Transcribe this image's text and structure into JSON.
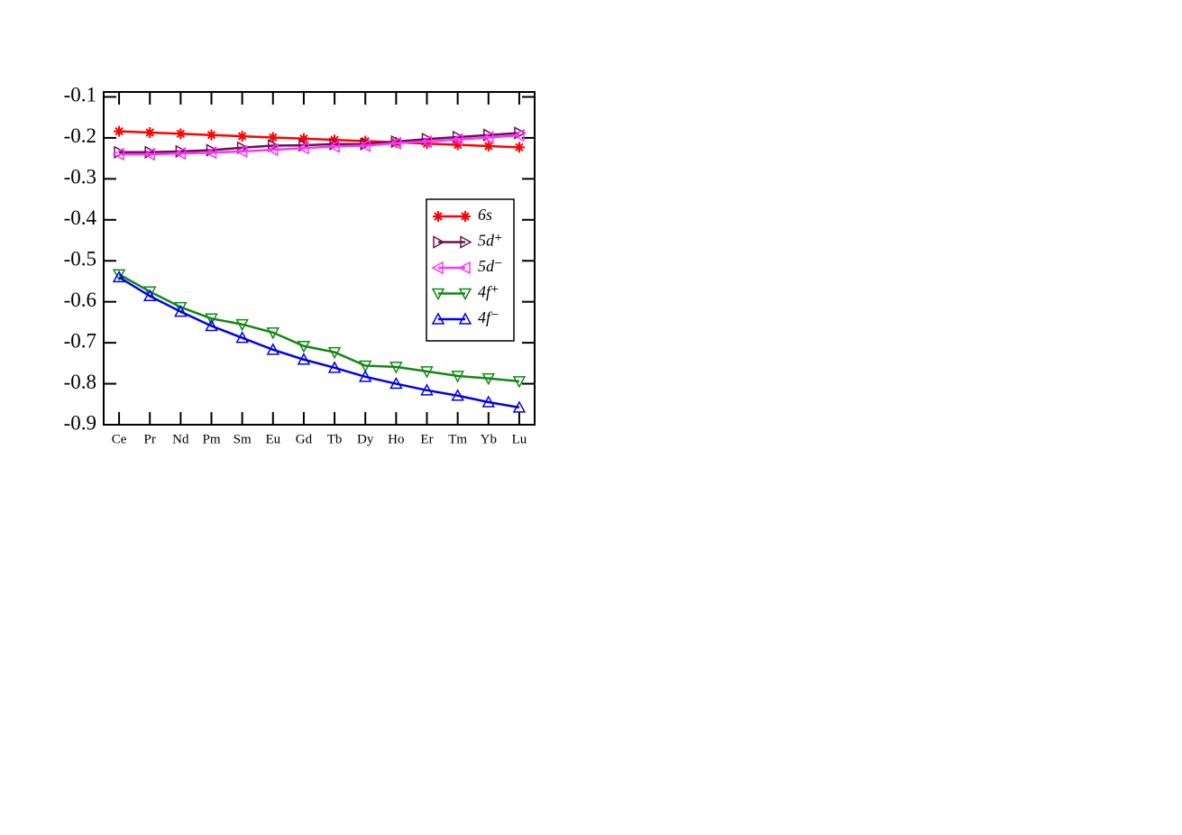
{
  "chart_data": {
    "type": "line",
    "categories": [
      "Ce",
      "Pr",
      "Nd",
      "Pm",
      "Sm",
      "Eu",
      "Gd",
      "Tb",
      "Dy",
      "Ho",
      "Er",
      "Tm",
      "Yb",
      "Lu"
    ],
    "ylim": [
      -0.9,
      -0.088
    ],
    "yticks": [
      -0.9,
      -0.8,
      -0.7,
      -0.6,
      -0.5,
      -0.4,
      -0.3,
      -0.2,
      -0.1
    ],
    "legend": "right",
    "series": [
      {
        "name": "6s",
        "color": "#ff0000",
        "marker": "star",
        "values": [
          -0.184,
          -0.187,
          -0.19,
          -0.193,
          -0.196,
          -0.199,
          -0.202,
          -0.205,
          -0.208,
          -0.211,
          -0.214,
          -0.217,
          -0.22,
          -0.223
        ]
      },
      {
        "name": "5d⁺",
        "color": "#6b1050",
        "marker": "right",
        "values": [
          -0.235,
          -0.235,
          -0.233,
          -0.23,
          -0.224,
          -0.219,
          -0.218,
          -0.215,
          -0.215,
          -0.209,
          -0.203,
          -0.198,
          -0.193,
          -0.188
        ]
      },
      {
        "name": "5d⁻",
        "color": "#ff33ff",
        "marker": "left",
        "values": [
          -0.24,
          -0.24,
          -0.238,
          -0.236,
          -0.233,
          -0.229,
          -0.225,
          -0.221,
          -0.219,
          -0.213,
          -0.209,
          -0.204,
          -0.199,
          -0.194
        ]
      },
      {
        "name": "4f⁺",
        "color": "#118811",
        "marker": "down",
        "values": [
          -0.533,
          -0.575,
          -0.613,
          -0.641,
          -0.655,
          -0.675,
          -0.708,
          -0.723,
          -0.756,
          -0.759,
          -0.77,
          -0.781,
          -0.787,
          -0.794
        ]
      },
      {
        "name": "4f⁻",
        "color": "#0000ee",
        "marker": "up",
        "values": [
          -0.54,
          -0.586,
          -0.624,
          -0.659,
          -0.688,
          -0.717,
          -0.741,
          -0.761,
          -0.783,
          -0.8,
          -0.816,
          -0.829,
          -0.845,
          -0.858
        ]
      }
    ]
  }
}
